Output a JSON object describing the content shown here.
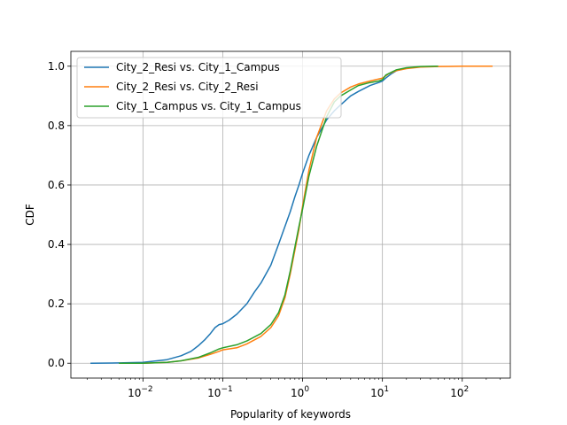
{
  "chart_data": {
    "type": "line",
    "xlabel": "Popularity of keywords",
    "ylabel": "CDF",
    "xscale": "log",
    "xlim": [
      0.00125,
      400
    ],
    "ylim": [
      -0.05,
      1.05
    ],
    "grid": true,
    "legend": "top-left",
    "x_ticks": [
      {
        "value": 0.01,
        "base": "10",
        "exp": "−2"
      },
      {
        "value": 0.1,
        "base": "10",
        "exp": "−1"
      },
      {
        "value": 1,
        "base": "10",
        "exp": "0"
      },
      {
        "value": 10,
        "base": "10",
        "exp": "1"
      },
      {
        "value": 100,
        "base": "10",
        "exp": "2"
      }
    ],
    "y_ticks": [
      {
        "value": 0.0,
        "label": "0.0"
      },
      {
        "value": 0.2,
        "label": "0.2"
      },
      {
        "value": 0.4,
        "label": "0.4"
      },
      {
        "value": 0.6,
        "label": "0.6"
      },
      {
        "value": 0.8,
        "label": "0.8"
      },
      {
        "value": 1.0,
        "label": "1.0"
      }
    ],
    "series": [
      {
        "name": "City_2_Resi vs. City_1_Campus",
        "color": "#1f77b4",
        "x": [
          0.0022,
          0.005,
          0.01,
          0.02,
          0.03,
          0.04,
          0.05,
          0.06,
          0.07,
          0.08,
          0.09,
          0.1,
          0.12,
          0.15,
          0.2,
          0.25,
          0.3,
          0.4,
          0.5,
          0.6,
          0.7,
          0.8,
          0.9,
          1.0,
          1.2,
          1.5,
          2.0,
          2.5,
          3.0,
          4.0,
          5.0,
          7.0,
          9.0,
          10.0,
          11.0,
          13.0,
          15.0,
          20.0,
          30.0,
          40.0,
          50.0
        ],
        "y": [
          0.0,
          0.001,
          0.003,
          0.012,
          0.025,
          0.04,
          0.06,
          0.08,
          0.1,
          0.12,
          0.13,
          0.133,
          0.145,
          0.165,
          0.2,
          0.24,
          0.27,
          0.33,
          0.4,
          0.46,
          0.51,
          0.56,
          0.6,
          0.64,
          0.7,
          0.76,
          0.82,
          0.85,
          0.87,
          0.9,
          0.915,
          0.935,
          0.945,
          0.95,
          0.96,
          0.975,
          0.985,
          0.993,
          0.998,
          0.999,
          1.0
        ]
      },
      {
        "name": "City_2_Resi vs. City_2_Resi",
        "color": "#ff7f0e",
        "x": [
          0.01,
          0.02,
          0.03,
          0.05,
          0.07,
          0.09,
          0.1,
          0.15,
          0.2,
          0.3,
          0.4,
          0.5,
          0.6,
          0.7,
          0.8,
          0.9,
          1.0,
          1.2,
          1.5,
          2.0,
          2.5,
          3.0,
          4.0,
          5.0,
          7.0,
          10.0,
          12.0,
          15.0,
          20.0,
          30.0,
          50.0,
          100.0,
          240.0
        ],
        "y": [
          0.0,
          0.003,
          0.008,
          0.018,
          0.03,
          0.04,
          0.045,
          0.052,
          0.065,
          0.09,
          0.12,
          0.16,
          0.22,
          0.3,
          0.38,
          0.45,
          0.53,
          0.65,
          0.76,
          0.85,
          0.89,
          0.91,
          0.93,
          0.94,
          0.95,
          0.96,
          0.975,
          0.985,
          0.992,
          0.997,
          0.999,
          1.0,
          1.0
        ]
      },
      {
        "name": "City_1_Campus vs. City_1_Campus",
        "color": "#2ca02c",
        "x": [
          0.005,
          0.01,
          0.02,
          0.03,
          0.05,
          0.07,
          0.09,
          0.1,
          0.15,
          0.2,
          0.3,
          0.4,
          0.5,
          0.6,
          0.7,
          0.8,
          0.9,
          1.0,
          1.2,
          1.5,
          2.0,
          2.5,
          3.0,
          4.0,
          5.0,
          7.0,
          9.0,
          10.0,
          11.0,
          13.0,
          15.0,
          20.0,
          30.0,
          50.0
        ],
        "y": [
          0.0,
          0.0,
          0.003,
          0.008,
          0.02,
          0.035,
          0.048,
          0.052,
          0.062,
          0.075,
          0.1,
          0.13,
          0.17,
          0.23,
          0.31,
          0.39,
          0.46,
          0.52,
          0.63,
          0.73,
          0.83,
          0.88,
          0.9,
          0.92,
          0.935,
          0.945,
          0.95,
          0.955,
          0.97,
          0.98,
          0.988,
          0.995,
          0.999,
          1.0
        ]
      }
    ]
  }
}
